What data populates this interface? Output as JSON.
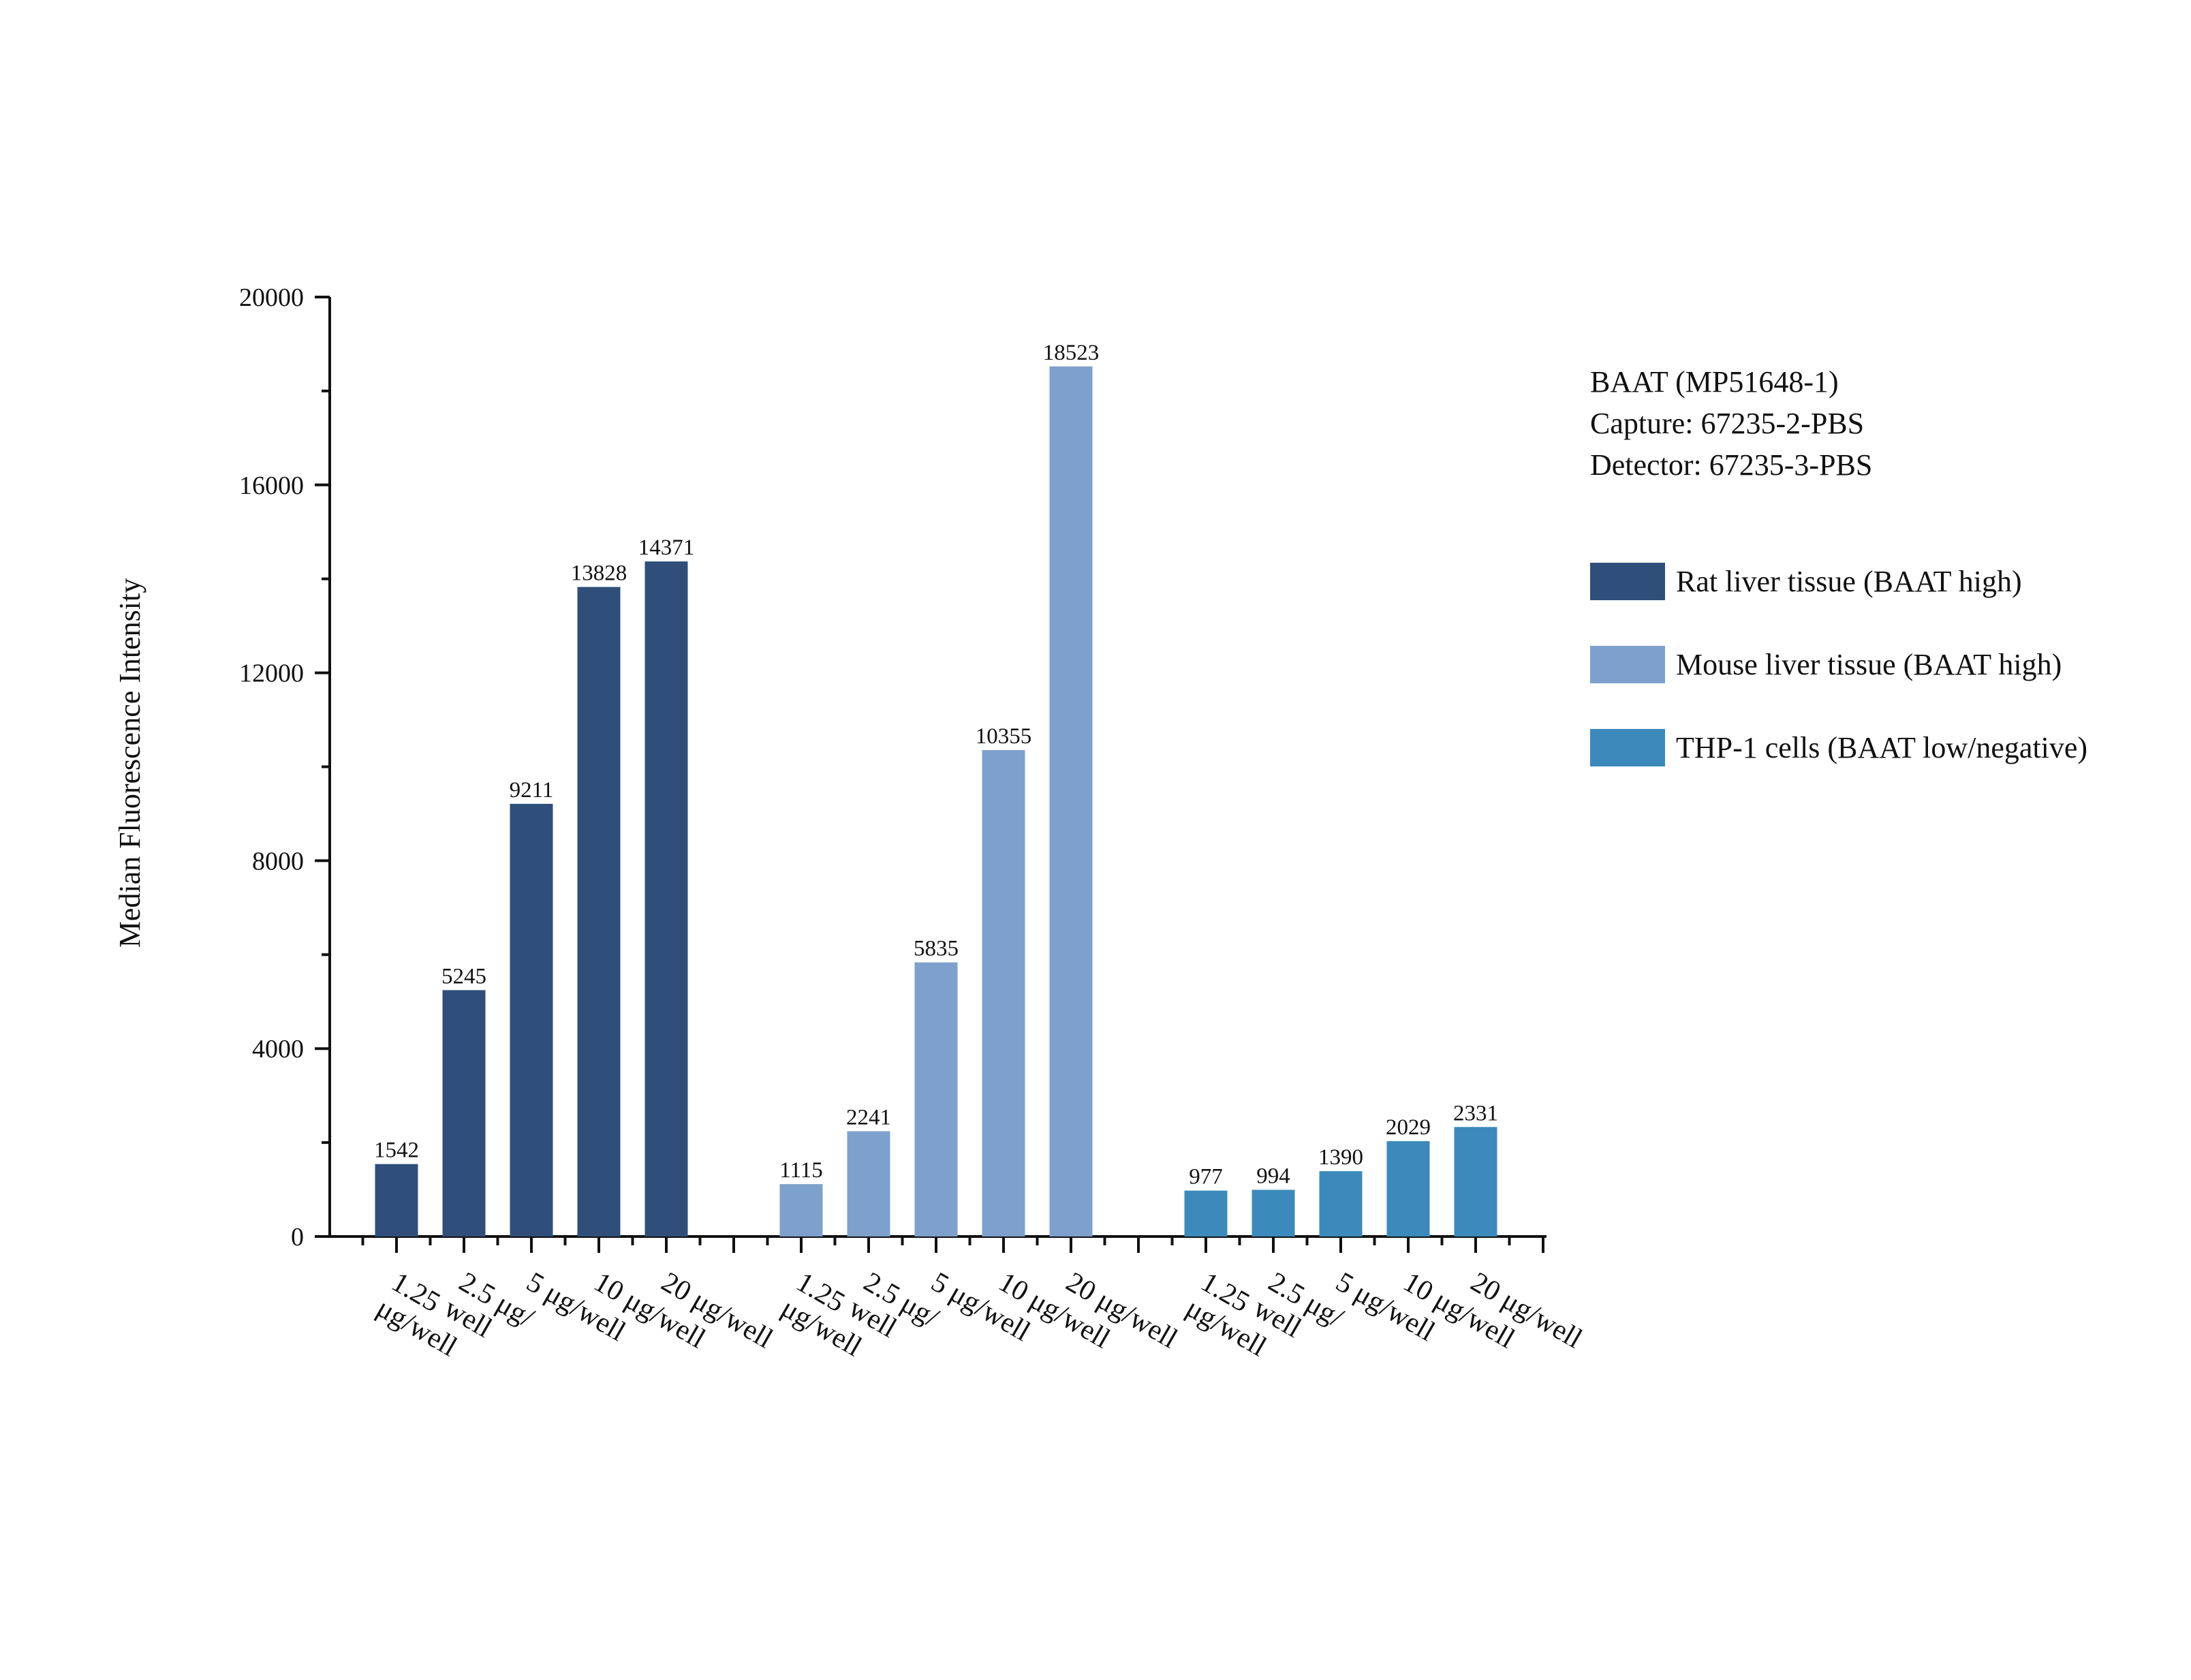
{
  "chart_data": {
    "type": "bar",
    "title": "",
    "xlabel": "",
    "ylabel": "Median Fluorescence Intensity",
    "ylim": [
      0,
      20000
    ],
    "yticks": [
      0,
      4000,
      8000,
      12000,
      16000,
      20000
    ],
    "grid": false,
    "legend_position": "right",
    "annotation_lines": [
      "BAAT (MP51648-1)",
      "Capture: 67235-2-PBS",
      "Detector: 67235-3-PBS"
    ],
    "categories": [
      "1.25 μg/well",
      "2.5 μg/well",
      "5 μg/well",
      "10 μg/well",
      "20 μg/well"
    ],
    "series": [
      {
        "name": "Rat liver tissue (BAAT high)",
        "color": "#2f4f7a",
        "values": [
          1542,
          5245,
          9211,
          13828,
          14371
        ]
      },
      {
        "name": "Mouse liver tissue (BAAT high)",
        "color": "#7ea0cc",
        "values": [
          1115,
          2241,
          5835,
          10355,
          18523
        ]
      },
      {
        "name": "THP-1 cells (BAAT low/negative)",
        "color": "#3b8abb",
        "values": [
          977,
          994,
          1390,
          2029,
          2331
        ]
      }
    ]
  }
}
